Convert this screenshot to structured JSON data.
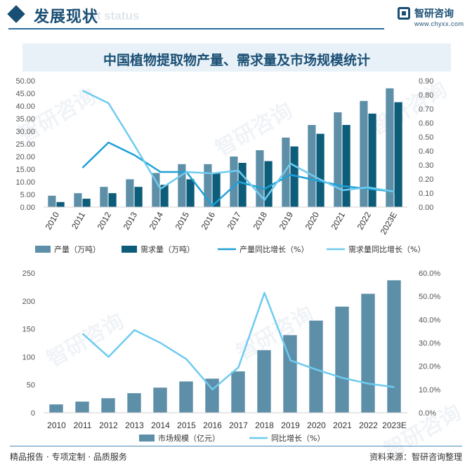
{
  "header": {
    "title": "发展现状",
    "subtitle_en": "ent status",
    "logo_name": "智研咨询",
    "logo_url": "www.chyxx.com"
  },
  "watermark": "智研咨询",
  "chart_data": [
    {
      "type": "bar",
      "title": "中国植物提取物产量、需求量及市场规模统计",
      "categories": [
        "2010",
        "2011",
        "2012",
        "2013",
        "2014",
        "2015",
        "2016",
        "2017",
        "2018",
        "2019",
        "2020",
        "2021",
        "2022",
        "2023E"
      ],
      "y_left_ticks": [
        "0.00",
        "5.00",
        "10.00",
        "15.00",
        "20.00",
        "25.00",
        "30.00",
        "35.00",
        "40.00",
        "45.00",
        "50.00"
      ],
      "y_right_ticks": [
        "0.00",
        "0.10",
        "0.20",
        "0.30",
        "0.40",
        "0.50",
        "0.60",
        "0.70",
        "0.80",
        "0.90"
      ],
      "ylim_left": [
        0,
        50
      ],
      "ylim_right": [
        0,
        0.9
      ],
      "series": [
        {
          "name": "产量（万吨）",
          "kind": "bar",
          "axis": "left",
          "color": "#5e8fa8",
          "values": [
            4.5,
            5.5,
            8.0,
            11.0,
            13.5,
            17.0,
            17.0,
            20.0,
            22.5,
            27.5,
            32.5,
            37.5,
            42.0,
            47.0
          ]
        },
        {
          "name": "需求量（万吨）",
          "kind": "bar",
          "axis": "left",
          "color": "#0d5d7a",
          "values": [
            2.0,
            3.3,
            5.5,
            8.0,
            8.8,
            11.0,
            13.5,
            17.5,
            18.2,
            24.0,
            29.0,
            32.5,
            37.0,
            41.5
          ]
        },
        {
          "name": "产量同比增长（%）",
          "kind": "line",
          "axis": "right",
          "color": "#1ea0d6",
          "values": [
            null,
            0.28,
            0.46,
            0.37,
            0.25,
            0.25,
            0.01,
            0.18,
            0.13,
            0.23,
            0.19,
            0.15,
            0.13,
            0.11
          ]
        },
        {
          "name": "需求量同比增长（%）",
          "kind": "line",
          "axis": "right",
          "color": "#6ecbf0",
          "values": [
            null,
            0.83,
            0.74,
            0.44,
            0.13,
            0.25,
            0.24,
            0.26,
            0.05,
            0.31,
            0.21,
            0.12,
            0.14,
            0.11
          ]
        }
      ]
    },
    {
      "type": "bar",
      "title": "",
      "categories": [
        "2010",
        "2011",
        "2012",
        "2013",
        "2014",
        "2015",
        "2016",
        "2017",
        "2018",
        "2019",
        "2020",
        "2021",
        "2022",
        "2023E"
      ],
      "y_left_ticks": [
        "0",
        "50",
        "100",
        "150",
        "200",
        "250"
      ],
      "y_right_ticks": [
        "0.0%",
        "10.0%",
        "20.0%",
        "30.0%",
        "40.0%",
        "50.0%",
        "60.0%"
      ],
      "ylim_left": [
        0,
        250
      ],
      "ylim_right": [
        0,
        60
      ],
      "series": [
        {
          "name": "市场规模（亿元）",
          "kind": "bar",
          "axis": "left",
          "color": "#5e8fa8",
          "values": [
            15,
            20,
            26,
            35,
            45,
            56,
            61,
            74,
            112,
            139,
            165,
            190,
            213,
            237
          ]
        },
        {
          "name": "同比增长（%）",
          "kind": "line",
          "axis": "right",
          "color": "#6ecbf0",
          "values": [
            null,
            34,
            24,
            35.5,
            30,
            23,
            10,
            19.5,
            51.5,
            22.5,
            18.5,
            15,
            12.5,
            11
          ]
        }
      ]
    }
  ],
  "footer": {
    "left": "精品报告 · 专项定制 · 品质服务",
    "right": "资料来源：智研咨询整理"
  }
}
